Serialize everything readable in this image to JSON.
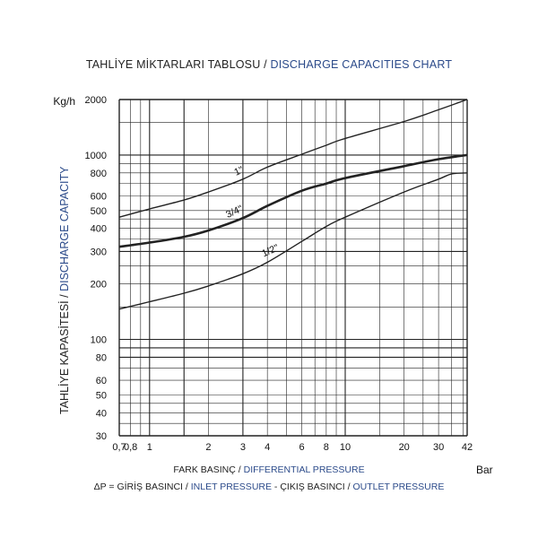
{
  "title": {
    "tr": "TAHLİYE MİKTARLARI TABLOSU /",
    "en": "DISCHARGE CAPACITIES CHART"
  },
  "x_axis": {
    "label_tr": "FARK BASINÇ /",
    "label_en": "DIFFERENTIAL PRESSURE",
    "unit": "Bar"
  },
  "y_axis": {
    "label_tr": "TAHLİYE KAPASİTESİ /",
    "label_en": "DISCHARGE CAPACITY",
    "unit": "Kg/h"
  },
  "formula": {
    "prefix": "ΔP =",
    "inlet_tr": "GİRİŞ BASINCI /",
    "inlet_en": "INLET PRESSURE",
    "sep": "- ÇIKIŞ BASINCI /",
    "outlet_en": "OUTLET PRESSURE"
  },
  "colors": {
    "accent_blue": "#2b4a8a",
    "grid": "#222222",
    "curve": "#222222"
  },
  "chart_data": {
    "type": "line",
    "xscale": "log",
    "yscale": "log",
    "xlim": [
      0.7,
      42
    ],
    "ylim": [
      30,
      2000
    ],
    "grid": true,
    "x_ticks": [
      0.7,
      0.8,
      1,
      2,
      3,
      4,
      6,
      8,
      10,
      20,
      30,
      42
    ],
    "x_tick_labels": [
      "0,7",
      "0,8",
      "1",
      "2",
      "3",
      "4",
      "6",
      "8",
      "10",
      "20",
      "30",
      "42"
    ],
    "y_ticks": [
      30,
      40,
      50,
      60,
      80,
      100,
      200,
      300,
      400,
      500,
      600,
      800,
      1000,
      2000
    ],
    "y_tick_labels": [
      "30",
      "40",
      "50",
      "60",
      "80",
      "100",
      "200",
      "300",
      "400",
      "500",
      "600",
      "800",
      "1000",
      "2000"
    ],
    "extra_x_grid": [
      0.9,
      1.5,
      5,
      7,
      9,
      15,
      25,
      35,
      40
    ],
    "extra_y_grid": [
      35,
      45,
      70,
      90,
      150,
      250,
      350,
      450,
      700,
      900,
      1500
    ],
    "series": [
      {
        "name": "1\"",
        "bold": false,
        "x": [
          0.7,
          1,
          1.5,
          2,
          3,
          4,
          6,
          8,
          10,
          20,
          30,
          42
        ],
        "y": [
          460,
          510,
          570,
          630,
          740,
          860,
          1010,
          1130,
          1230,
          1520,
          1760,
          2000
        ]
      },
      {
        "name": "3/4\"",
        "bold": true,
        "x": [
          0.7,
          1,
          1.5,
          2,
          3,
          4,
          6,
          8,
          10,
          20,
          30,
          42
        ],
        "y": [
          318,
          335,
          360,
          390,
          455,
          530,
          640,
          700,
          750,
          870,
          950,
          1000
        ]
      },
      {
        "name": "1/2\"",
        "bold": false,
        "x": [
          0.7,
          1,
          1.5,
          2,
          3,
          4,
          6,
          8,
          10,
          20,
          30,
          35,
          42
        ],
        "y": [
          146,
          160,
          178,
          195,
          227,
          262,
          340,
          410,
          460,
          630,
          740,
          790,
          800
        ]
      }
    ]
  }
}
